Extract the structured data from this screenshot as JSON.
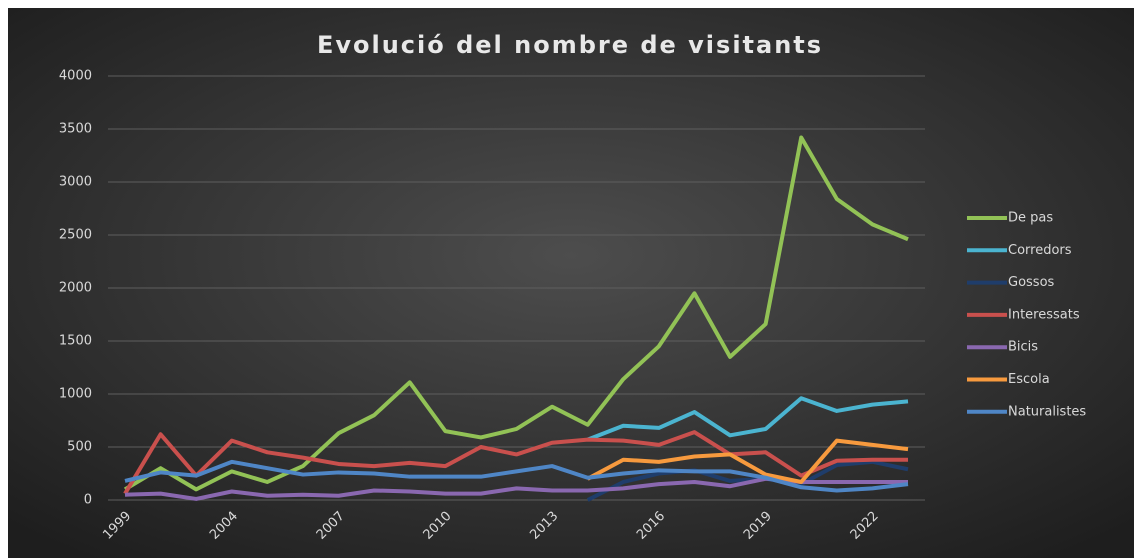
{
  "chart_data": {
    "type": "line",
    "title": "Evolució del nombre de visitants",
    "categories": [
      "1999",
      null,
      null,
      "2004",
      null,
      null,
      "2007",
      null,
      null,
      "2010",
      null,
      null,
      "2013",
      null,
      null,
      "2016",
      null,
      null,
      "2019",
      null,
      null,
      "2022",
      null
    ],
    "series": [
      {
        "name": "De pas",
        "color": "#92c256",
        "values": [
          100,
          300,
          100,
          270,
          170,
          320,
          630,
          800,
          1110,
          650,
          590,
          670,
          880,
          710,
          1140,
          1450,
          1950,
          1350,
          1660,
          3420,
          2840,
          2600,
          2460
        ]
      },
      {
        "name": "Corredors",
        "color": "#4bb4d0",
        "values": [
          null,
          null,
          null,
          null,
          null,
          null,
          null,
          null,
          null,
          null,
          null,
          null,
          null,
          570,
          700,
          680,
          830,
          610,
          670,
          960,
          840,
          900,
          930
        ]
      },
      {
        "name": "Gossos",
        "color": "#1f3d6b",
        "values": [
          null,
          null,
          null,
          null,
          null,
          null,
          null,
          null,
          null,
          null,
          null,
          null,
          null,
          0,
          170,
          250,
          280,
          180,
          200,
          150,
          330,
          360,
          290
        ]
      },
      {
        "name": "Interessats",
        "color": "#c9504d",
        "values": [
          60,
          620,
          230,
          560,
          450,
          400,
          340,
          320,
          350,
          320,
          500,
          430,
          540,
          570,
          560,
          520,
          640,
          430,
          450,
          230,
          370,
          380,
          380
        ]
      },
      {
        "name": "Bicis",
        "color": "#8a68b0",
        "values": [
          50,
          60,
          10,
          80,
          40,
          50,
          40,
          90,
          80,
          60,
          60,
          110,
          90,
          90,
          110,
          150,
          170,
          130,
          200,
          170,
          170,
          170,
          170
        ]
      },
      {
        "name": "Escola",
        "color": "#f79a3e",
        "values": [
          null,
          null,
          null,
          null,
          null,
          null,
          null,
          null,
          null,
          null,
          null,
          null,
          null,
          200,
          380,
          360,
          410,
          430,
          240,
          170,
          560,
          520,
          480
        ]
      },
      {
        "name": "Naturalistes",
        "color": "#4f86c6",
        "values": [
          180,
          260,
          230,
          360,
          300,
          240,
          260,
          250,
          220,
          220,
          220,
          270,
          320,
          210,
          250,
          280,
          270,
          270,
          210,
          120,
          90,
          110,
          150
        ]
      }
    ],
    "ylim": [
      0,
      4000
    ],
    "yticks": [
      0,
      500,
      1000,
      1500,
      2000,
      2500,
      3000,
      3500,
      4000
    ],
    "grid": true,
    "legend": "right"
  }
}
